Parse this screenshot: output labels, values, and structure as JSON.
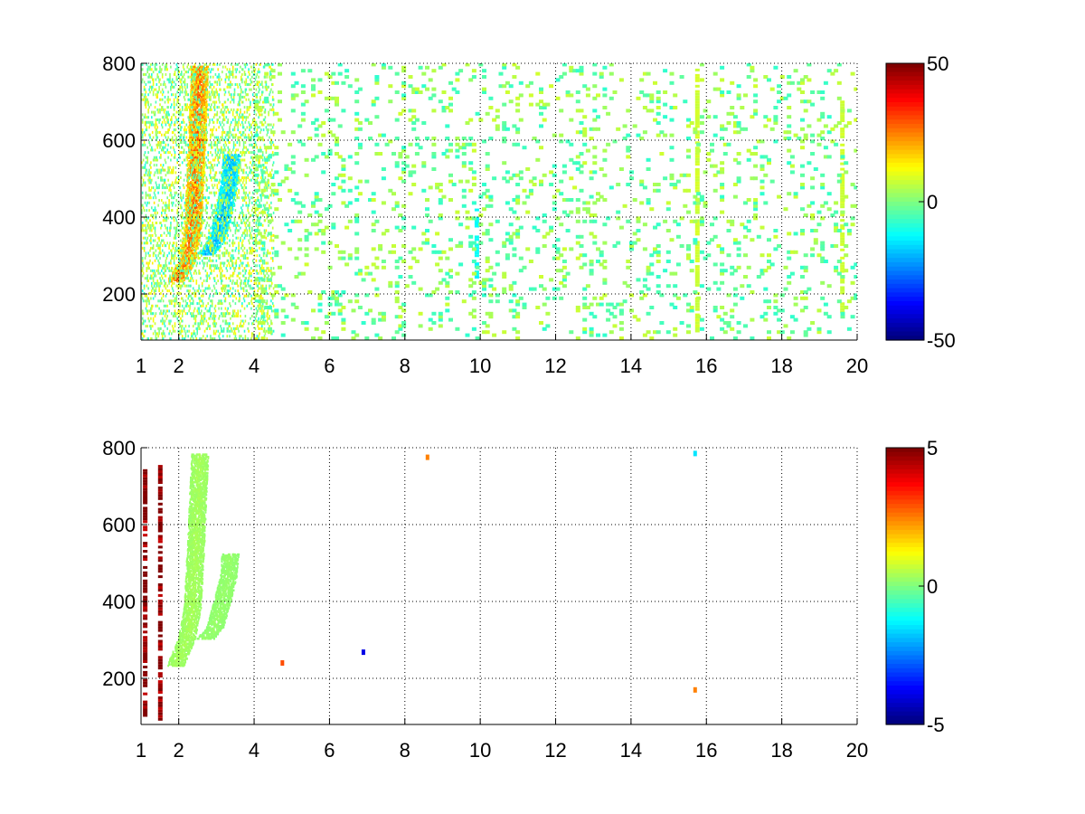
{
  "chart_data": [
    {
      "type": "heatmap",
      "title": "",
      "xlabel": "",
      "ylabel": "",
      "xlim": [
        1,
        20
      ],
      "ylim": [
        80,
        800
      ],
      "xticks": [
        1,
        2,
        4,
        6,
        8,
        10,
        12,
        14,
        16,
        18,
        20
      ],
      "xtick_labels": [
        "1",
        "2",
        "4",
        "6",
        "8",
        "10",
        "12",
        "14",
        "16",
        "18",
        "20"
      ],
      "yticks": [
        200,
        400,
        600,
        800
      ],
      "ytick_labels": [
        "200",
        "400",
        "600",
        "800"
      ],
      "grid": true,
      "colormap": "jet",
      "colorbar": {
        "min": -50,
        "max": 50,
        "ticks": [
          50,
          0,
          -50
        ],
        "tick_labels": [
          "50",
          "0",
          "-50"
        ]
      },
      "background": "#ffffff",
      "features": [
        {
          "kind": "ridge",
          "value": 35,
          "points": [
            [
              1.9,
              230
            ],
            [
              2.2,
              280
            ],
            [
              2.35,
              360
            ],
            [
              2.4,
              450
            ],
            [
              2.45,
              560
            ],
            [
              2.5,
              680
            ],
            [
              2.55,
              790
            ]
          ]
        },
        {
          "kind": "ridge",
          "value": -25,
          "points": [
            [
              2.7,
              300
            ],
            [
              2.95,
              330
            ],
            [
              3.15,
              390
            ],
            [
              3.3,
              470
            ],
            [
              3.4,
              560
            ]
          ]
        },
        {
          "kind": "noise_columns",
          "x_range": [
            1,
            4.5
          ],
          "value_range": [
            -10,
            15
          ]
        },
        {
          "kind": "stripe",
          "x": 9.85,
          "y_range": [
            240,
            420
          ],
          "value": -12
        },
        {
          "kind": "stripe",
          "x": 15.7,
          "y_range": [
            100,
            800
          ],
          "value": 8
        },
        {
          "kind": "stripe",
          "x": 19.55,
          "y_range": [
            150,
            700
          ],
          "value": 8
        },
        {
          "kind": "sparse_cells",
          "x_range": [
            4,
            20
          ],
          "value_range": [
            -8,
            8
          ]
        }
      ]
    },
    {
      "type": "heatmap",
      "title": "",
      "xlabel": "",
      "ylabel": "",
      "xlim": [
        1,
        20
      ],
      "ylim": [
        80,
        800
      ],
      "xticks": [
        1,
        2,
        4,
        6,
        8,
        10,
        12,
        14,
        16,
        18,
        20
      ],
      "xtick_labels": [
        "1",
        "2",
        "4",
        "6",
        "8",
        "10",
        "12",
        "14",
        "16",
        "18",
        "20"
      ],
      "yticks": [
        200,
        400,
        600,
        800
      ],
      "ytick_labels": [
        "200",
        "400",
        "600",
        "800"
      ],
      "grid": true,
      "colormap": "jet",
      "colorbar": {
        "min": -5,
        "max": 5,
        "ticks": [
          5,
          0,
          -5
        ],
        "tick_labels": [
          "5",
          "0",
          "-5"
        ]
      },
      "background": "#ffffff",
      "features": [
        {
          "kind": "ridge",
          "value": 0.5,
          "points": [
            [
              1.9,
              230
            ],
            [
              2.2,
              300
            ],
            [
              2.35,
              380
            ],
            [
              2.4,
              470
            ],
            [
              2.45,
              560
            ],
            [
              2.5,
              680
            ],
            [
              2.55,
              780
            ]
          ]
        },
        {
          "kind": "ridge",
          "value": 0.3,
          "points": [
            [
              2.7,
              300
            ],
            [
              2.95,
              330
            ],
            [
              3.15,
              400
            ],
            [
              3.3,
              460
            ],
            [
              3.35,
              520
            ]
          ]
        },
        {
          "kind": "stripe",
          "x": 1.05,
          "y_range": [
            100,
            740
          ],
          "value": 5
        },
        {
          "kind": "stripe",
          "x": 1.45,
          "y_range": [
            90,
            750
          ],
          "value": 5
        },
        {
          "kind": "dot",
          "x": 4.75,
          "y": 240,
          "value": 3
        },
        {
          "kind": "dot",
          "x": 6.9,
          "y": 268,
          "value": -4
        },
        {
          "kind": "dot",
          "x": 8.6,
          "y": 775,
          "value": 2.5
        },
        {
          "kind": "dot",
          "x": 15.7,
          "y": 785,
          "value": -1.5
        },
        {
          "kind": "dot",
          "x": 15.7,
          "y": 170,
          "value": 2.5
        }
      ]
    }
  ]
}
